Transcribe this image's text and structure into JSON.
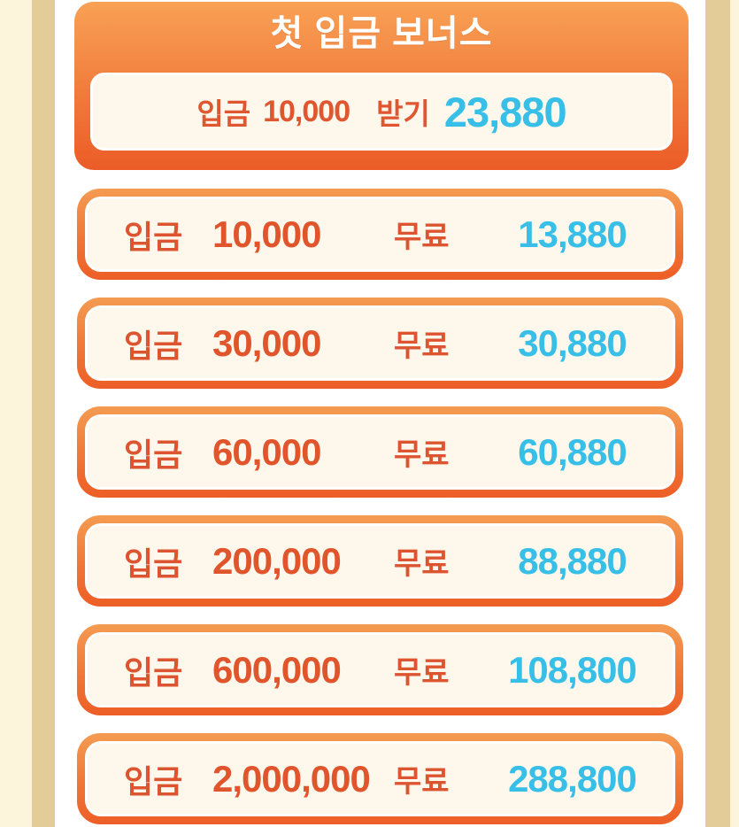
{
  "header_card": {
    "title": "첫 입금 보너스",
    "claim_row": {
      "deposit_label": "입금",
      "deposit_amount": "10,000",
      "claim_label": "받기",
      "bonus_amount": "23,880"
    }
  },
  "bonus_rows": [
    {
      "deposit_label": "입금",
      "deposit_amount": "10,000",
      "free_label": "무료",
      "bonus_amount": "13,880"
    },
    {
      "deposit_label": "입금",
      "deposit_amount": "30,000",
      "free_label": "무료",
      "bonus_amount": "30,880"
    },
    {
      "deposit_label": "입금",
      "deposit_amount": "60,000",
      "free_label": "무료",
      "bonus_amount": "60,880"
    },
    {
      "deposit_label": "입금",
      "deposit_amount": "200,000",
      "free_label": "무료",
      "bonus_amount": "88,880"
    },
    {
      "deposit_label": "입금",
      "deposit_amount": "600,000",
      "free_label": "무료",
      "bonus_amount": "108,800"
    },
    {
      "deposit_label": "입금",
      "deposit_amount": "2,000,000",
      "free_label": "무료",
      "bonus_amount": "288,800"
    }
  ],
  "colors": {
    "accent_orange_deep": "#ED5E27",
    "accent_orange_light": "#F49B52",
    "text_orange": "#DC5530",
    "text_cyan": "#38BFE8",
    "panel_cream": "#FDF8EB",
    "page_margin_cream": "#FCF4DB",
    "page_margin_stripe": "#E3CC97",
    "header_title_white": "#FFFFFF"
  }
}
